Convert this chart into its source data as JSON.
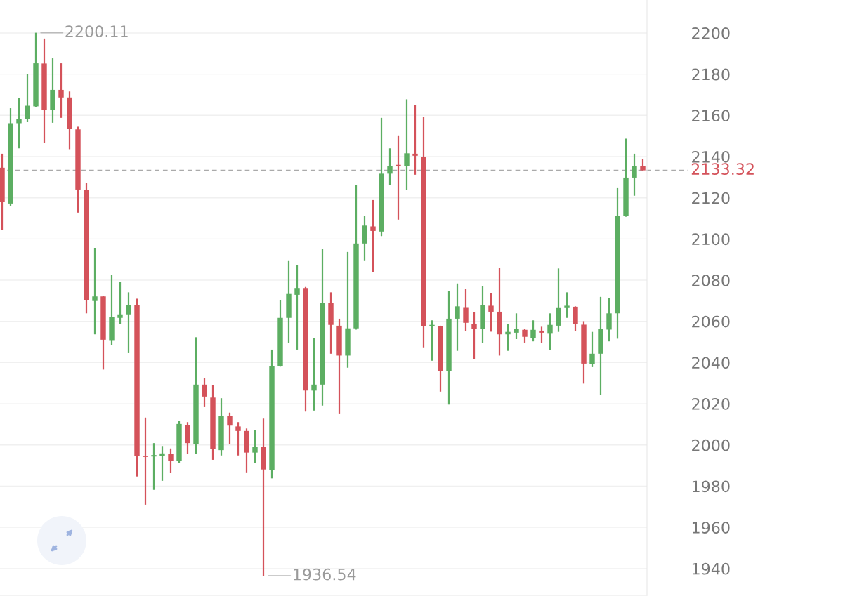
{
  "chart_data": {
    "type": "candlestick",
    "categories": [
      null,
      null,
      null,
      null,
      null,
      null,
      null,
      null,
      null,
      null,
      null,
      null,
      null,
      null,
      null,
      null,
      null,
      null,
      null,
      null,
      null,
      null,
      null,
      null,
      null,
      null,
      null,
      null,
      null,
      null,
      null,
      null,
      null,
      null,
      null,
      null,
      null,
      null,
      null,
      null,
      null,
      null,
      null,
      null,
      null,
      null,
      null,
      null,
      null,
      null,
      null,
      null,
      null,
      null,
      null,
      null,
      null,
      null,
      null,
      null,
      null,
      null,
      null,
      null,
      null,
      null,
      null,
      null,
      null,
      null,
      null,
      null,
      null,
      null,
      null,
      null,
      null
    ],
    "ohlc": [
      [
        2134.6,
        2141.4,
        2104.3,
        2117.9
      ],
      [
        2117.2,
        2163.5,
        2116.0,
        2156.2
      ],
      [
        2156.2,
        2168.3,
        2144.0,
        2158.4
      ],
      [
        2158.1,
        2180.1,
        2156.7,
        2164.7
      ],
      [
        2164.4,
        2200.11,
        2163.9,
        2185.3
      ],
      [
        2185.2,
        2197.3,
        2146.8,
        2162.5
      ],
      [
        2162.5,
        2187.7,
        2156.4,
        2172.4
      ],
      [
        2172.4,
        2185.3,
        2158.8,
        2168.7
      ],
      [
        2168.7,
        2171.6,
        2143.6,
        2153.3
      ],
      [
        2153.2,
        2154.5,
        2112.8,
        2124.0
      ],
      [
        2124.0,
        2127.4,
        2063.9,
        2070.2
      ],
      [
        2069.9,
        2095.7,
        2053.7,
        2072.1
      ],
      [
        2072.1,
        2072.4,
        2036.6,
        2051.1
      ],
      [
        2050.9,
        2082.6,
        2048.6,
        2062.2
      ],
      [
        2061.7,
        2079.0,
        2058.6,
        2063.4
      ],
      [
        2063.4,
        2074.1,
        2044.6,
        2067.8
      ],
      [
        2067.8,
        2071.0,
        1984.7,
        1994.6
      ],
      [
        1994.7,
        2013.3,
        1971.0,
        1994.2
      ],
      [
        1994.4,
        2000.9,
        1978.2,
        1995.1
      ],
      [
        1994.6,
        1999.5,
        1982.6,
        1995.9
      ],
      [
        1995.8,
        1998.3,
        1986.4,
        1992.3
      ],
      [
        1992.3,
        2011.6,
        1991.1,
        2010.2
      ],
      [
        2009.7,
        2011.1,
        1995.7,
        2000.9
      ],
      [
        2000.5,
        2052.3,
        1995.7,
        2029.3
      ],
      [
        2029.3,
        2032.4,
        2018.7,
        2023.5
      ],
      [
        2023.0,
        2028.9,
        1992.8,
        1998.0
      ],
      [
        1997.5,
        2022.7,
        1994.9,
        2014.0
      ],
      [
        2014.0,
        2015.7,
        2000.3,
        2009.4
      ],
      [
        2009.0,
        2011.1,
        1994.9,
        2006.8
      ],
      [
        2006.8,
        2008.0,
        1986.7,
        1996.3
      ],
      [
        1996.3,
        2007.2,
        1991.1,
        1999.1
      ],
      [
        1999.1,
        2012.8,
        1936.54,
        1988.1
      ],
      [
        1987.8,
        2046.3,
        1983.8,
        2038.3
      ],
      [
        2038.3,
        2070.2,
        2038.0,
        2061.7
      ],
      [
        2061.7,
        2089.3,
        2049.7,
        2073.3
      ],
      [
        2072.9,
        2087.2,
        2046.3,
        2076.2
      ],
      [
        2076.2,
        2076.7,
        2016.2,
        2026.4
      ],
      [
        2026.4,
        2052.0,
        2016.7,
        2029.3
      ],
      [
        2029.3,
        2095.1,
        2019.1,
        2069.0
      ],
      [
        2069.0,
        2074.1,
        2044.3,
        2058.3
      ],
      [
        2057.9,
        2061.3,
        2015.3,
        2043.4
      ],
      [
        2043.4,
        2093.7,
        2037.5,
        2056.6
      ],
      [
        2056.6,
        2126.1,
        2056.0,
        2097.8
      ],
      [
        2097.8,
        2111.2,
        2089.3,
        2106.5
      ],
      [
        2106.1,
        2118.9,
        2083.8,
        2103.9
      ],
      [
        2103.6,
        2158.8,
        2101.4,
        2131.7
      ],
      [
        2131.7,
        2144.0,
        2126.1,
        2135.4
      ],
      [
        2136.0,
        2150.3,
        2109.4,
        2135.4
      ],
      [
        2135.3,
        2167.8,
        2123.9,
        2141.6
      ],
      [
        2141.4,
        2165.2,
        2131.2,
        2140.4
      ],
      [
        2140.0,
        2159.3,
        2047.4,
        2057.9
      ],
      [
        2057.6,
        2060.5,
        2040.9,
        2058.3
      ],
      [
        2057.6,
        2057.9,
        2025.9,
        2035.8
      ],
      [
        2035.8,
        2074.6,
        2019.6,
        2061.3
      ],
      [
        2061.3,
        2078.4,
        2045.7,
        2067.3
      ],
      [
        2066.9,
        2075.8,
        2055.4,
        2059.3
      ],
      [
        2058.8,
        2064.4,
        2041.7,
        2056.2
      ],
      [
        2056.2,
        2077.0,
        2049.4,
        2067.8
      ],
      [
        2067.6,
        2073.6,
        2055.0,
        2064.7
      ],
      [
        2064.7,
        2086.0,
        2043.4,
        2053.7
      ],
      [
        2053.7,
        2058.6,
        2045.7,
        2054.9
      ],
      [
        2054.5,
        2063.9,
        2051.4,
        2056.2
      ],
      [
        2055.9,
        2056.2,
        2049.7,
        2052.5
      ],
      [
        2052.0,
        2060.5,
        2050.3,
        2055.9
      ],
      [
        2055.5,
        2057.4,
        2049.4,
        2054.5
      ],
      [
        2054.0,
        2063.9,
        2046.0,
        2058.3
      ],
      [
        2057.9,
        2085.7,
        2054.9,
        2066.8
      ],
      [
        2066.8,
        2074.1,
        2061.7,
        2067.6
      ],
      [
        2067.1,
        2067.3,
        2055.4,
        2058.8
      ],
      [
        2058.4,
        2060.1,
        2029.8,
        2039.5
      ],
      [
        2039.2,
        2054.9,
        2037.8,
        2044.3
      ],
      [
        2044.3,
        2071.9,
        2024.2,
        2056.2
      ],
      [
        2056.0,
        2071.5,
        2050.3,
        2063.9
      ],
      [
        2063.9,
        2124.7,
        2051.6,
        2111.2
      ],
      [
        2111.1,
        2148.7,
        2110.8,
        2129.8
      ],
      [
        2129.8,
        2141.4,
        2121.0,
        2135.4
      ],
      [
        2135.4,
        2138.8,
        2133.32,
        2133.32
      ]
    ],
    "colors": [
      "#d4525a",
      "#5cae62",
      "#5cae62",
      "#5cae62",
      "#5cae62",
      "#d4525a",
      "#5cae62",
      "#d4525a",
      "#d4525a",
      "#d4525a",
      "#d4525a",
      "#5cae62",
      "#d4525a",
      "#5cae62",
      "#5cae62",
      "#5cae62",
      "#d4525a",
      "#d4525a",
      "#5cae62",
      "#5cae62",
      "#d4525a",
      "#5cae62",
      "#d4525a",
      "#5cae62",
      "#d4525a",
      "#d4525a",
      "#5cae62",
      "#d4525a",
      "#d4525a",
      "#d4525a",
      "#5cae62",
      "#d4525a",
      "#5cae62",
      "#5cae62",
      "#5cae62",
      "#5cae62",
      "#d4525a",
      "#5cae62",
      "#5cae62",
      "#d4525a",
      "#d4525a",
      "#5cae62",
      "#5cae62",
      "#5cae62",
      "#d4525a",
      "#5cae62",
      "#5cae62",
      "#d4525a",
      "#5cae62",
      "#d4525a",
      "#d4525a",
      "#5cae62",
      "#d4525a",
      "#5cae62",
      "#5cae62",
      "#d4525a",
      "#d4525a",
      "#5cae62",
      "#d4525a",
      "#d4525a",
      "#5cae62",
      "#5cae62",
      "#d4525a",
      "#5cae62",
      "#d4525a",
      "#5cae62",
      "#5cae62",
      "#5cae62",
      "#d4525a",
      "#d4525a",
      "#5cae62",
      "#5cae62",
      "#5cae62",
      "#5cae62",
      "#5cae62",
      "#5cae62",
      "#d4525a"
    ],
    "ylim": [
      1927,
      2216
    ],
    "yticks": [
      1940,
      1960,
      1980,
      2000,
      2020,
      2040,
      2060,
      2080,
      2100,
      2120,
      2140,
      2160,
      2180,
      2200
    ],
    "grid": "y",
    "tick_labels": "y",
    "ref_lines": [
      {
        "axis": "y",
        "value": 2133.32,
        "label": "2133.32",
        "color": "#aaaaaa",
        "line_style": "dashed"
      }
    ],
    "annotations": [
      "2200.11",
      "1936.54"
    ]
  }
}
